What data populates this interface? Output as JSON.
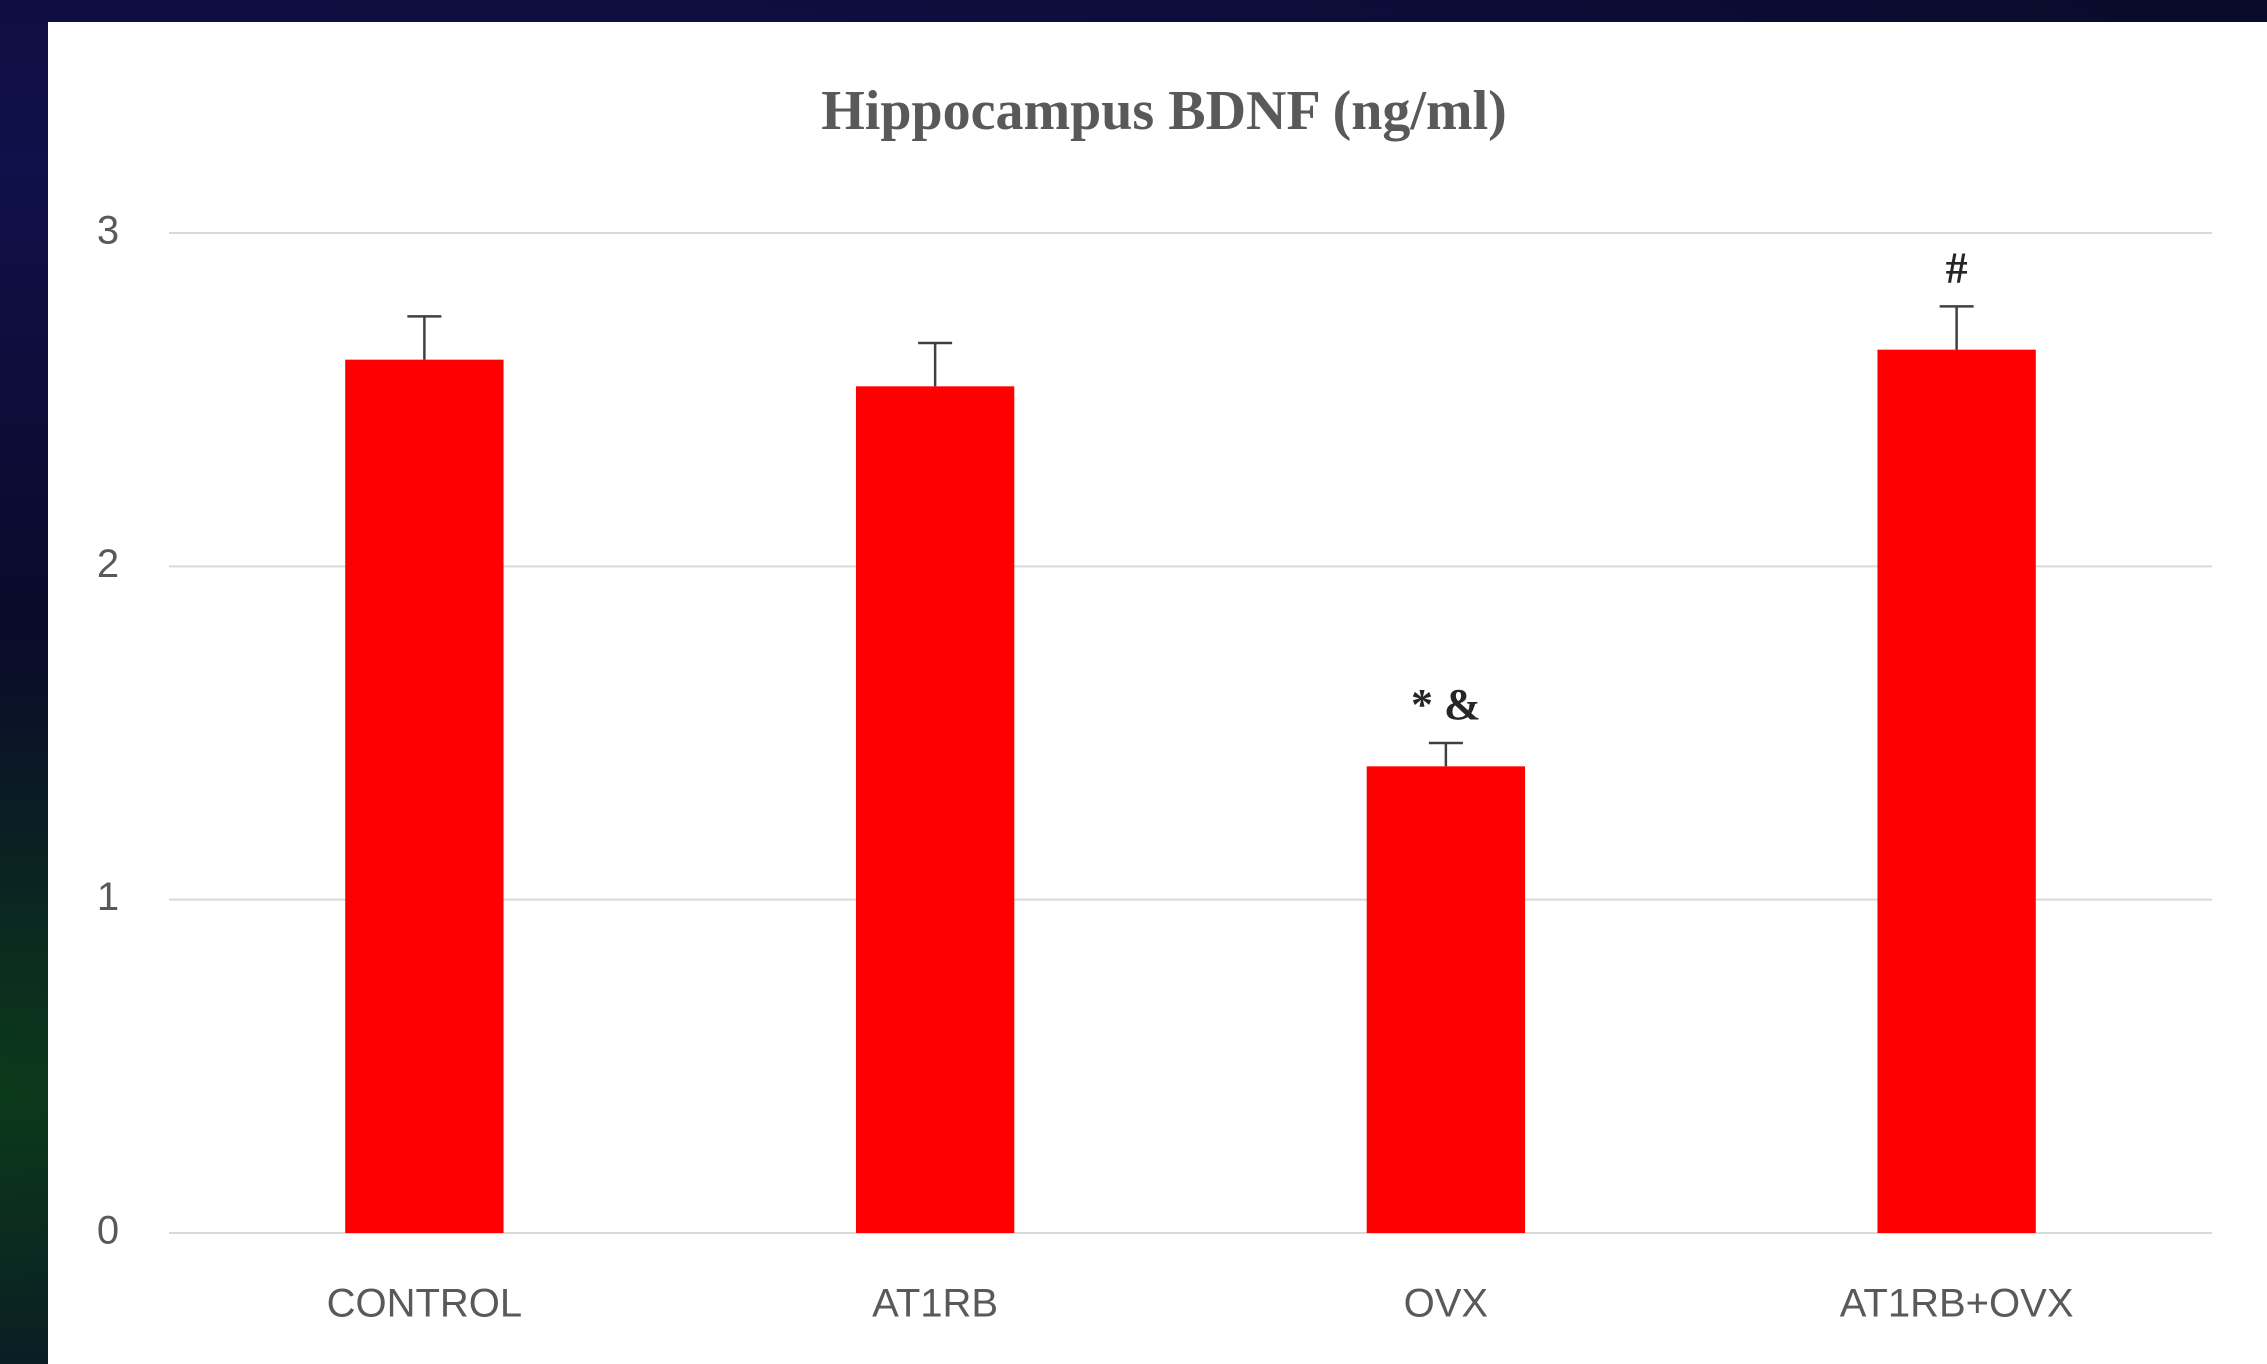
{
  "chart_data": {
    "type": "bar",
    "title": "Hippocampus  BDNF (ng/ml)",
    "categories": [
      "CONTROL",
      "AT1RB",
      "OVX",
      "AT1RB+OVX"
    ],
    "values": [
      2.62,
      2.54,
      1.4,
      2.65
    ],
    "errors": [
      0.13,
      0.13,
      0.07,
      0.13
    ],
    "annotations": [
      null,
      null,
      "* &",
      "#"
    ],
    "color": "#ff0000",
    "ylim": [
      0,
      3
    ],
    "yticks": [
      0,
      1,
      2,
      3
    ],
    "grid": true
  }
}
